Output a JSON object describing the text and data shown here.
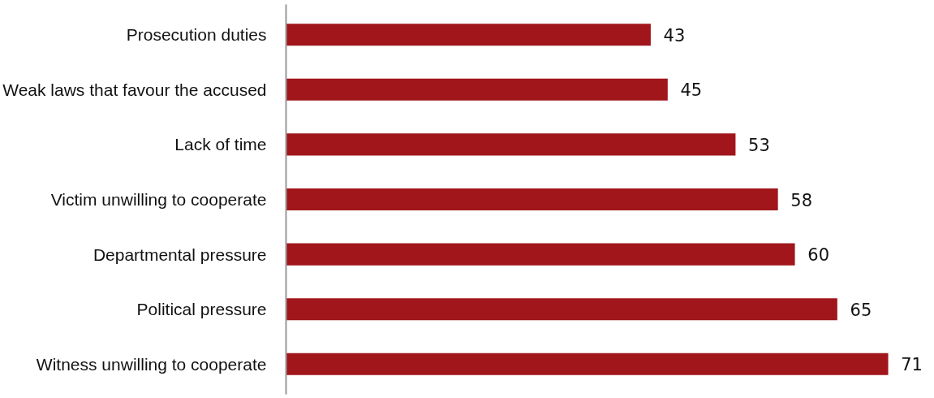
{
  "chart_data": {
    "type": "bar",
    "orientation": "horizontal",
    "categories": [
      "Prosecution duties",
      "Weak laws that favour the accused",
      "Lack of time",
      "Victim unwilling to cooperate",
      "Departmental pressure",
      "Political pressure",
      "Witness unwilling to cooperate"
    ],
    "values": [
      43,
      45,
      53,
      58,
      60,
      65,
      71
    ],
    "color": "#a0161b",
    "data_labels": true,
    "grid": false,
    "tick_labels": "y"
  }
}
